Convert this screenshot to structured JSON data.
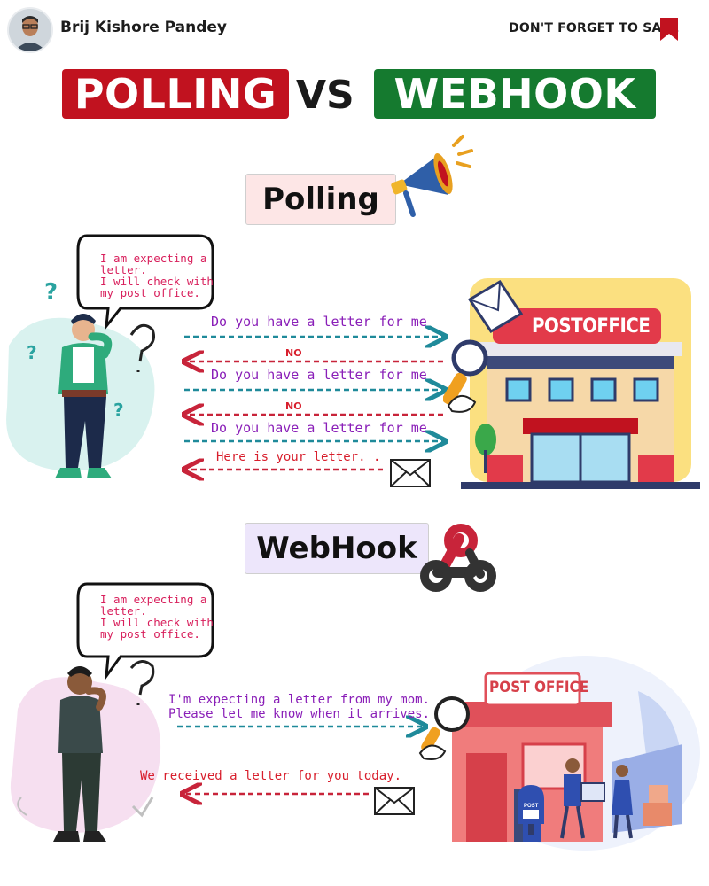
{
  "header": {
    "author": "Brij Kishore Pandey",
    "save_label": "DON'T FORGET TO SAVE"
  },
  "title": {
    "left": "POLLING",
    "vs": "VS",
    "right": "WEBHOOK"
  },
  "polling": {
    "label": "Polling",
    "thought": [
      "I am expecting a",
      "letter.",
      "I will check with",
      "my post office."
    ],
    "building_sign": "POSTOFFICE",
    "messages": [
      {
        "text": "Do you have a letter for me",
        "direction": "right"
      },
      {
        "text": "NO",
        "direction": "left"
      },
      {
        "text": "Do you have a letter for me",
        "direction": "right"
      },
      {
        "text": "NO",
        "direction": "left"
      },
      {
        "text": "Do you have a letter for me",
        "direction": "right"
      },
      {
        "text": "Here is your letter. .",
        "direction": "left"
      }
    ]
  },
  "webhook": {
    "label": "WebHook",
    "thought": [
      "I am expecting a",
      "letter.",
      "I will check with",
      "my post office."
    ],
    "building_sign": "POST OFFICE",
    "mailbox_label": "POST",
    "request": [
      "I'm expecting a letter from my mom.",
      "Please let me know when it arrives."
    ],
    "response": "We received a letter for you today."
  },
  "colors": {
    "polling_red": "#c1121f",
    "webhook_green": "#157a2f",
    "arrow_teal": "#1f8a9a",
    "arrow_red": "#c8243a",
    "message_purple": "#8a1fb8",
    "thought_pink": "#d81e5b"
  }
}
